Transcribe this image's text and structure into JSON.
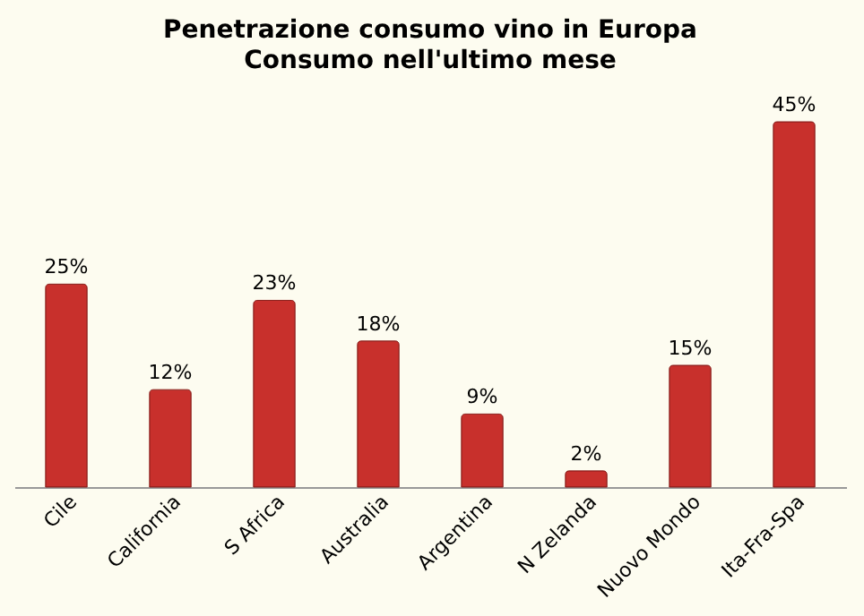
{
  "chart_data": {
    "type": "bar",
    "title": "Penetrazione consumo vino in Europa",
    "subtitle": "Consumo nell'ultimo mese",
    "categories": [
      "Cile",
      "California",
      "S Africa",
      "Australia",
      "Argentina",
      "N Zelanda",
      "Nuovo Mondo",
      "Ita-Fra-Spa"
    ],
    "values": [
      25,
      12,
      23,
      18,
      9,
      2,
      15,
      45
    ],
    "value_labels": [
      "25%",
      "12%",
      "23%",
      "18%",
      "9%",
      "2%",
      "15%",
      "45%"
    ],
    "color": "#c8302c"
  }
}
